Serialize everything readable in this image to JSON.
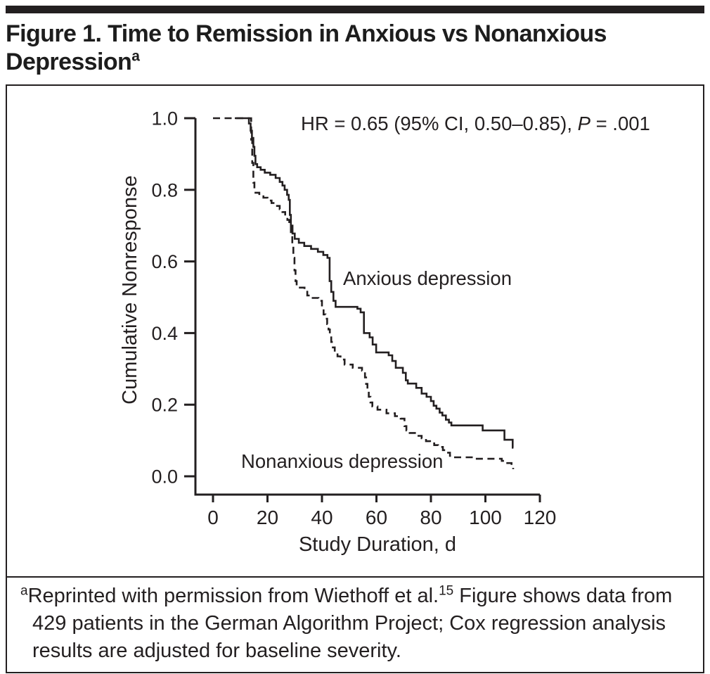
{
  "title": {
    "line1": "Figure 1. Time to Remission in Anxious vs Nonanxious",
    "line2": "Depression",
    "superscript": "a"
  },
  "annotation": {
    "prefix": "HR = 0.65 (95% CI, 0.50–0.85), ",
    "p_label": "P",
    "p_value": " = .001"
  },
  "footnote": {
    "marker": "a",
    "part1": "Reprinted with permission from Wiethoff et al.",
    "ref": "15",
    "part2": " Figure shows data from 429 patients in the German Algorithm Project; Cox regression analysis results are adjusted for baseline severity."
  },
  "chart_data": {
    "type": "line",
    "subtype": "step-survival",
    "title": "Time to Remission in Anxious vs Nonanxious Depression",
    "xlabel": "Study Duration, d",
    "ylabel": "Cumulative Nonresponse",
    "xlim": [
      0,
      120
    ],
    "ylim": [
      0.0,
      1.0
    ],
    "grid": false,
    "legend_position": "in-plot labels",
    "annotation_text": "HR = 0.65 (95% CI, 0.50–0.85), P = .001",
    "x_ticks": [
      {
        "value": 0,
        "label": "0"
      },
      {
        "value": 20,
        "label": "20"
      },
      {
        "value": 40,
        "label": "40"
      },
      {
        "value": 60,
        "label": "60"
      },
      {
        "value": 80,
        "label": "80"
      },
      {
        "value": 100,
        "label": "100"
      },
      {
        "value": 120,
        "label": "120"
      }
    ],
    "y_ticks": [
      {
        "value": 1.0,
        "label": "1.0"
      },
      {
        "value": 0.8,
        "label": "0.8"
      },
      {
        "value": 0.6,
        "label": "0.6"
      },
      {
        "value": 0.4,
        "label": "0.4"
      },
      {
        "value": 0.2,
        "label": "0.2"
      },
      {
        "value": 0.0,
        "label": "0.0"
      }
    ],
    "series": [
      {
        "id": "anxious",
        "name": "Anxious depression",
        "style": "solid",
        "points": [
          [
            8,
            1.0
          ],
          [
            12.6,
            1.0
          ],
          [
            13.2,
            0.985
          ],
          [
            13.8,
            0.965
          ],
          [
            14.3,
            0.945
          ],
          [
            14.8,
            0.92
          ],
          [
            15.2,
            0.895
          ],
          [
            15.6,
            0.872
          ],
          [
            16.2,
            0.863
          ],
          [
            17.5,
            0.856
          ],
          [
            19,
            0.848
          ],
          [
            21,
            0.842
          ],
          [
            23,
            0.833
          ],
          [
            24.5,
            0.822
          ],
          [
            25.5,
            0.812
          ],
          [
            26.3,
            0.8
          ],
          [
            27.2,
            0.786
          ],
          [
            27.8,
            0.772
          ],
          [
            28.2,
            0.73
          ],
          [
            28.6,
            0.7
          ],
          [
            29.2,
            0.678
          ],
          [
            30,
            0.663
          ],
          [
            31.5,
            0.652
          ],
          [
            33.5,
            0.643
          ],
          [
            36,
            0.635
          ],
          [
            38.5,
            0.627
          ],
          [
            40.5,
            0.618
          ],
          [
            42,
            0.61
          ],
          [
            42.8,
            0.545
          ],
          [
            43.4,
            0.515
          ],
          [
            44.2,
            0.49
          ],
          [
            45,
            0.473
          ],
          [
            53,
            0.468
          ],
          [
            54.2,
            0.458
          ],
          [
            55.4,
            0.4
          ],
          [
            57.5,
            0.388
          ],
          [
            58.6,
            0.368
          ],
          [
            59.9,
            0.346
          ],
          [
            64.5,
            0.338
          ],
          [
            65.8,
            0.322
          ],
          [
            67.1,
            0.303
          ],
          [
            69.7,
            0.289
          ],
          [
            70.8,
            0.268
          ],
          [
            71.5,
            0.259
          ],
          [
            74.6,
            0.247
          ],
          [
            76.6,
            0.231
          ],
          [
            78.4,
            0.222
          ],
          [
            80,
            0.21
          ],
          [
            81,
            0.197
          ],
          [
            82,
            0.189
          ],
          [
            83.2,
            0.178
          ],
          [
            84.2,
            0.17
          ],
          [
            85.5,
            0.158
          ],
          [
            86.6,
            0.15
          ],
          [
            87.5,
            0.142
          ],
          [
            99,
            0.128
          ],
          [
            107,
            0.102
          ],
          [
            110,
            0.08
          ],
          [
            110.3,
            0.08
          ]
        ]
      },
      {
        "id": "nonanxious",
        "name": "Nonanxious depression",
        "style": "dashed",
        "points": [
          [
            0,
            1.0
          ],
          [
            13.6,
            1.0
          ],
          [
            14,
            0.94
          ],
          [
            14.4,
            0.875
          ],
          [
            14.8,
            0.82
          ],
          [
            15.2,
            0.792
          ],
          [
            17,
            0.785
          ],
          [
            18.5,
            0.778
          ],
          [
            20,
            0.77
          ],
          [
            21.5,
            0.763
          ],
          [
            23,
            0.755
          ],
          [
            24.5,
            0.746
          ],
          [
            25.5,
            0.738
          ],
          [
            26.5,
            0.728
          ],
          [
            27.3,
            0.716
          ],
          [
            28,
            0.7
          ],
          [
            28.6,
            0.675
          ],
          [
            29.1,
            0.648
          ],
          [
            29.5,
            0.61
          ],
          [
            29.9,
            0.575
          ],
          [
            30.3,
            0.545
          ],
          [
            30.7,
            0.527
          ],
          [
            33.6,
            0.52
          ],
          [
            34.6,
            0.505
          ],
          [
            35.5,
            0.498
          ],
          [
            38.7,
            0.49
          ],
          [
            40,
            0.468
          ],
          [
            40.6,
            0.452
          ],
          [
            41.3,
            0.44
          ],
          [
            41.9,
            0.425
          ],
          [
            42.4,
            0.41
          ],
          [
            42.9,
            0.394
          ],
          [
            43.4,
            0.375
          ],
          [
            44,
            0.36
          ],
          [
            44.7,
            0.345
          ],
          [
            45.7,
            0.335
          ],
          [
            46.8,
            0.326
          ],
          [
            48.3,
            0.312
          ],
          [
            51.3,
            0.303
          ],
          [
            54.7,
            0.295
          ],
          [
            55.8,
            0.276
          ],
          [
            56.2,
            0.258
          ],
          [
            56.7,
            0.24
          ],
          [
            57.2,
            0.222
          ],
          [
            57.8,
            0.206
          ],
          [
            58.5,
            0.195
          ],
          [
            60.4,
            0.186
          ],
          [
            63.7,
            0.176
          ],
          [
            66.8,
            0.168
          ],
          [
            68.9,
            0.161
          ],
          [
            70.3,
            0.14
          ],
          [
            71,
            0.128
          ],
          [
            72.2,
            0.121
          ],
          [
            74.6,
            0.113
          ],
          [
            76.6,
            0.106
          ],
          [
            78.2,
            0.098
          ],
          [
            79.7,
            0.092
          ],
          [
            81.2,
            0.087
          ],
          [
            82.6,
            0.082
          ],
          [
            84.4,
            0.073
          ],
          [
            85.4,
            0.066
          ],
          [
            87,
            0.057
          ],
          [
            88.3,
            0.053
          ],
          [
            95.8,
            0.049
          ],
          [
            106,
            0.043
          ],
          [
            107,
            0.037
          ],
          [
            109.6,
            0.028
          ],
          [
            110.2,
            0.02
          ]
        ]
      }
    ]
  }
}
